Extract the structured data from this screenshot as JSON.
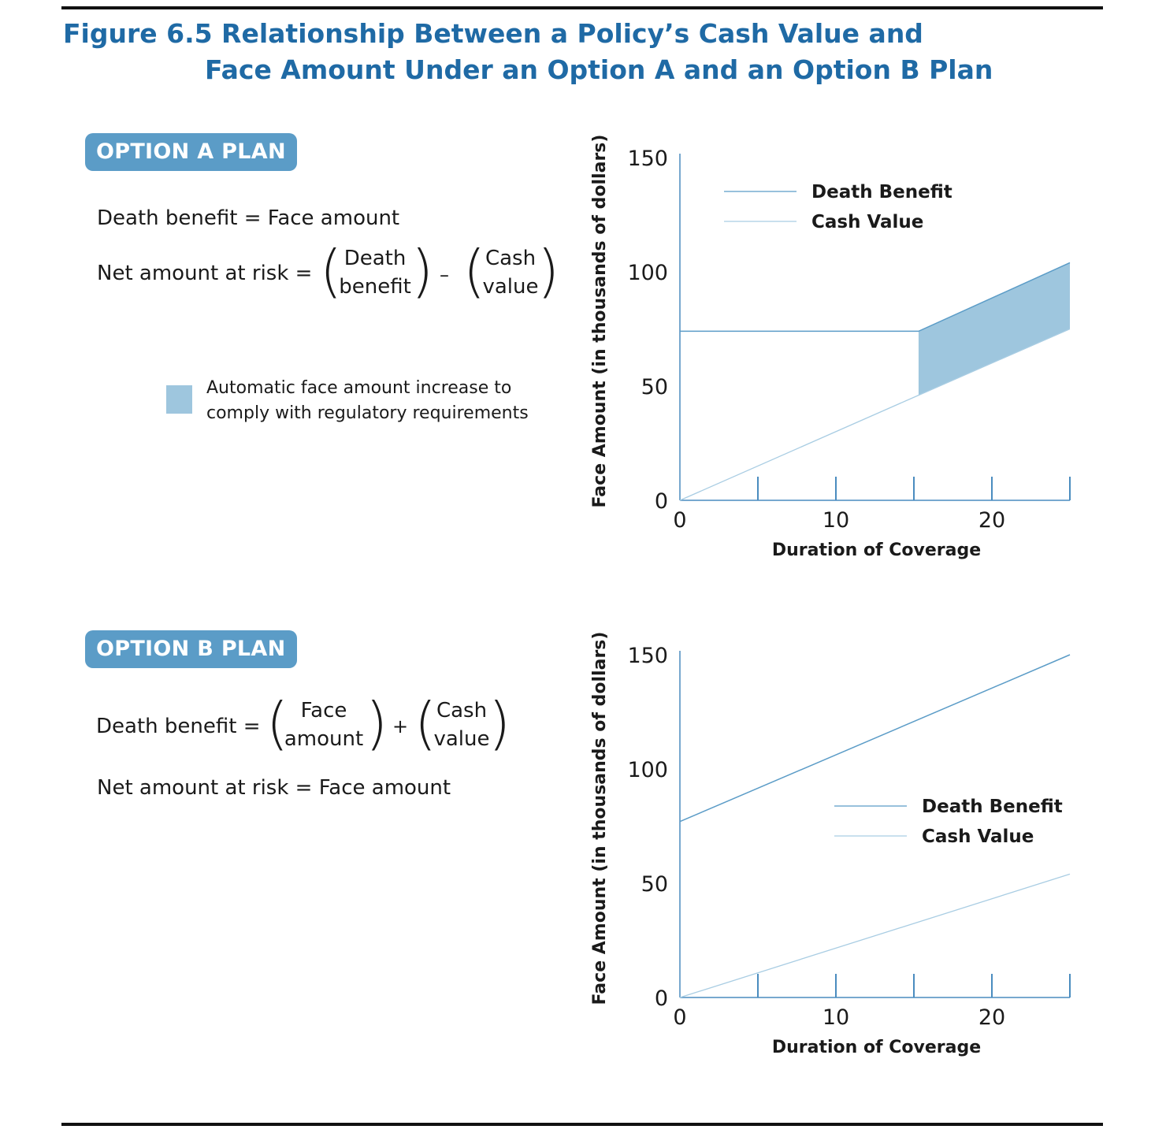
{
  "figure": {
    "title_line1": "Figure 6.5 Relationship Between a Policy’s Cash Value and",
    "title_line2": "Face Amount Under an Option A and an Option B Plan"
  },
  "option_a": {
    "badge": "OPTION A PLAN",
    "eq1": "Death benefit = Face amount",
    "eq2_prefix": "Net amount at risk =",
    "eq2_term1": [
      "Death",
      "benefit"
    ],
    "eq2_operator": "–",
    "eq2_term2": [
      "Cash",
      "value"
    ],
    "swatch_label_line1": "Automatic face amount increase to",
    "swatch_label_line2": "comply with regulatory requirements",
    "swatch_color": "#9ec6de"
  },
  "option_b": {
    "badge": "OPTION B PLAN",
    "eq1_prefix": "Death benefit =",
    "eq1_term1": [
      "Face",
      "amount"
    ],
    "eq1_operator": "+",
    "eq1_term2": [
      "Cash",
      "value"
    ],
    "eq2": "Net amount at risk = Face amount"
  },
  "colors": {
    "title": "#1f6aa5",
    "badge": "#5b9cc7",
    "axis": "#4a8cbf",
    "death_benefit_line": "#5b9cc7",
    "cash_value_line": "#a9cde3",
    "fill": "#9ec6de"
  },
  "chart_data": [
    {
      "type": "line",
      "title": "OPTION A PLAN",
      "xlabel": "Duration of Coverage",
      "ylabel": "Face Amount (in thousands of dollars)",
      "xlim": [
        0,
        25
      ],
      "ylim": [
        0,
        150
      ],
      "xticks": [
        0,
        10,
        20
      ],
      "xtick_marks": [
        5,
        10,
        15,
        20,
        25
      ],
      "yticks": [
        0,
        50,
        100,
        150
      ],
      "grid": false,
      "legend_position": "top-right",
      "series": [
        {
          "name": "Death Benefit",
          "x": [
            0,
            15.3,
            25
          ],
          "y": [
            74,
            74,
            104
          ]
        },
        {
          "name": "Cash Value",
          "x": [
            0,
            15.3,
            25
          ],
          "y": [
            0,
            46,
            75
          ]
        }
      ],
      "shaded_region": {
        "label": "Automatic face amount increase to comply with regulatory requirements",
        "x": [
          15.3,
          25
        ],
        "upper": [
          74,
          104
        ],
        "lower": [
          46,
          75
        ]
      }
    },
    {
      "type": "line",
      "title": "OPTION B PLAN",
      "xlabel": "Duration of Coverage",
      "ylabel": "Face Amount (in thousands of dollars)",
      "xlim": [
        0,
        25
      ],
      "ylim": [
        0,
        150
      ],
      "xticks": [
        0,
        10,
        20
      ],
      "xtick_marks": [
        5,
        10,
        15,
        20,
        25
      ],
      "yticks": [
        0,
        50,
        100,
        150
      ],
      "grid": false,
      "legend_position": "center-right",
      "series": [
        {
          "name": "Death Benefit",
          "x": [
            0,
            25
          ],
          "y": [
            77,
            150
          ]
        },
        {
          "name": "Cash Value",
          "x": [
            0,
            25
          ],
          "y": [
            0,
            54
          ]
        }
      ]
    }
  ]
}
